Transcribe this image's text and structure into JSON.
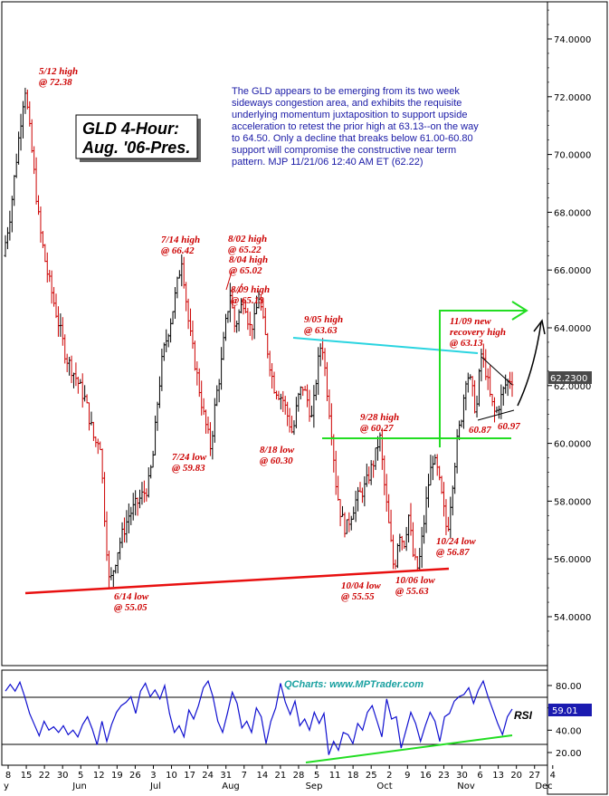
{
  "chart_data": [
    {
      "type": "candlestick",
      "title": "GLD 4-Hour:",
      "subtitle": "Aug. '06-Pres.",
      "ylim": [
        52.6,
        75.4
      ],
      "y_ticks": [
        "74.0000",
        "72.0000",
        "70.0000",
        "68.0000",
        "66.0000",
        "64.0000",
        "62.0000",
        "60.0000",
        "58.0000",
        "56.0000",
        "54.0000"
      ],
      "last_price": "62.2300",
      "price_path": [
        [
          0,
          66.5
        ],
        [
          1.5,
          68
        ],
        [
          2.5,
          69.5
        ],
        [
          3.5,
          71
        ],
        [
          4.5,
          72.38
        ],
        [
          6,
          70
        ],
        [
          7.5,
          67.5
        ],
        [
          9,
          66
        ],
        [
          11,
          64.5
        ],
        [
          13,
          63
        ],
        [
          15,
          62.3
        ],
        [
          17,
          61.5
        ],
        [
          19,
          60
        ],
        [
          20,
          60.2
        ],
        [
          21,
          57.5
        ],
        [
          22,
          55.05
        ],
        [
          24,
          56.5
        ],
        [
          26,
          57.5
        ],
        [
          28,
          58
        ],
        [
          30,
          58.5
        ],
        [
          31,
          59.5
        ],
        [
          32,
          61.5
        ],
        [
          33,
          63
        ],
        [
          35,
          64.5
        ],
        [
          37,
          66.42
        ],
        [
          38.5,
          64
        ],
        [
          40,
          62.5
        ],
        [
          41.5,
          61
        ],
        [
          43,
          59.83
        ],
        [
          44,
          61.5
        ],
        [
          45,
          62.5
        ],
        [
          46,
          64
        ],
        [
          47,
          65.22
        ],
        [
          48,
          64
        ],
        [
          49,
          64.6
        ],
        [
          50,
          65.02
        ],
        [
          51,
          64
        ],
        [
          52,
          64.2
        ],
        [
          53,
          65.13
        ],
        [
          54,
          64
        ],
        [
          55,
          63
        ],
        [
          56,
          62
        ],
        [
          58,
          61.5
        ],
        [
          60,
          60.3
        ],
        [
          61,
          61.5
        ],
        [
          62,
          62
        ],
        [
          63,
          61.5
        ],
        [
          64,
          60.8
        ],
        [
          65,
          62.5
        ],
        [
          66,
          63.63
        ],
        [
          67,
          62
        ],
        [
          68,
          60.5
        ],
        [
          69,
          58.5
        ],
        [
          70,
          57.5
        ],
        [
          71,
          57
        ],
        [
          72,
          57.5
        ],
        [
          73,
          58
        ],
        [
          75,
          58.5
        ],
        [
          77,
          59.5
        ],
        [
          78,
          60.27
        ],
        [
          79,
          58.5
        ],
        [
          80,
          57
        ],
        [
          81,
          55.55
        ],
        [
          82,
          57
        ],
        [
          83,
          56.5
        ],
        [
          84,
          57.5
        ],
        [
          85,
          56
        ],
        [
          86,
          55.63
        ],
        [
          87,
          57
        ],
        [
          88,
          58.5
        ],
        [
          89,
          59.5
        ],
        [
          90,
          59
        ],
        [
          91,
          58
        ],
        [
          92,
          56.87
        ],
        [
          93,
          58.5
        ],
        [
          94,
          60
        ],
        [
          95,
          61
        ],
        [
          96,
          62.5
        ],
        [
          97,
          62
        ],
        [
          98,
          61
        ],
        [
          99,
          63.13
        ],
        [
          100,
          62.5
        ],
        [
          101,
          61.5
        ],
        [
          102,
          60.97
        ],
        [
          103,
          61.5
        ],
        [
          104,
          62
        ],
        [
          105,
          62.23
        ]
      ],
      "annotations": [
        {
          "lines": [
            "5/12 high",
            "@ 72.38"
          ]
        },
        {
          "lines": [
            "7/14 high",
            "@ 66.42"
          ]
        },
        {
          "lines": [
            "8/02 high",
            "@ 65.22"
          ]
        },
        {
          "lines": [
            "8/04 high",
            "@ 65.02"
          ]
        },
        {
          "lines": [
            "8/09 high",
            "@ 65.13"
          ]
        },
        {
          "lines": [
            "9/05 high",
            "@ 63.63"
          ]
        },
        {
          "lines": [
            "11/09 new",
            "recovery high",
            "@ 63.13"
          ]
        },
        {
          "lines": [
            "9/28 high",
            "@ 60.27"
          ]
        },
        {
          "lines": [
            "60.87"
          ]
        },
        {
          "lines": [
            "60.97"
          ]
        },
        {
          "lines": [
            "7/24 low",
            "@ 59.83"
          ]
        },
        {
          "lines": [
            "8/18 low",
            "@ 60.30"
          ]
        },
        {
          "lines": [
            "10/24 low",
            "@ 56.87"
          ]
        },
        {
          "lines": [
            "6/14 low",
            "@ 55.05"
          ]
        },
        {
          "lines": [
            "10/04 low",
            "@ 55.55"
          ]
        },
        {
          "lines": [
            "10/06 low",
            "@ 55.63"
          ]
        }
      ],
      "commentary": [
        "The GLD appears to be emerging from its two week",
        "sideways congestion area, and exhibits the requisite",
        "underlying momentum juxtaposition to support upside",
        "acceleration to retest the prior high at 63.13--on the way",
        "to 64.50. Only a decline that breaks below 61.00-60.80",
        "support will compromise the constructive near term",
        "pattern. MJP 11/21/06 12:40 AM ET   (62.22)"
      ],
      "colors": {
        "support_line": "#e81010",
        "resistance_line": "#2ad4e0",
        "breakout_line": "#22dd22",
        "bar_up": "#000000",
        "bar_down": "#cc0000"
      }
    },
    {
      "type": "line",
      "name": "RSI",
      "watermark": "QCharts: www.MPTrader.com",
      "ylim": [
        10,
        90
      ],
      "y_ticks": [
        "80.00",
        "60.00",
        "40.00",
        "20.00"
      ],
      "last_value": "59.01",
      "rsi_path": [
        [
          0,
          75
        ],
        [
          1,
          81
        ],
        [
          2,
          75
        ],
        [
          3,
          83
        ],
        [
          4,
          70
        ],
        [
          5,
          55
        ],
        [
          6,
          45
        ],
        [
          7,
          35
        ],
        [
          8,
          48
        ],
        [
          9,
          40
        ],
        [
          10,
          43
        ],
        [
          11,
          38
        ],
        [
          12,
          44
        ],
        [
          13,
          36
        ],
        [
          14,
          40
        ],
        [
          15,
          34
        ],
        [
          16,
          45
        ],
        [
          17,
          52
        ],
        [
          18,
          41
        ],
        [
          19,
          27
        ],
        [
          20,
          48
        ],
        [
          21,
          30
        ],
        [
          22,
          45
        ],
        [
          23,
          56
        ],
        [
          24,
          62
        ],
        [
          25,
          65
        ],
        [
          26,
          70
        ],
        [
          27,
          55
        ],
        [
          28,
          75
        ],
        [
          29,
          82
        ],
        [
          30,
          70
        ],
        [
          31,
          76
        ],
        [
          32,
          68
        ],
        [
          33,
          80
        ],
        [
          34,
          55
        ],
        [
          35,
          38
        ],
        [
          36,
          44
        ],
        [
          37,
          34
        ],
        [
          38,
          58
        ],
        [
          39,
          50
        ],
        [
          40,
          62
        ],
        [
          41,
          78
        ],
        [
          42,
          84
        ],
        [
          43,
          70
        ],
        [
          44,
          48
        ],
        [
          45,
          38
        ],
        [
          46,
          55
        ],
        [
          47,
          74
        ],
        [
          48,
          64
        ],
        [
          49,
          42
        ],
        [
          50,
          48
        ],
        [
          51,
          38
        ],
        [
          52,
          60
        ],
        [
          53,
          52
        ],
        [
          54,
          28
        ],
        [
          55,
          48
        ],
        [
          56,
          60
        ],
        [
          57,
          82
        ],
        [
          58,
          65
        ],
        [
          59,
          54
        ],
        [
          60,
          66
        ],
        [
          61,
          44
        ],
        [
          62,
          50
        ],
        [
          63,
          40
        ],
        [
          64,
          56
        ],
        [
          65,
          46
        ],
        [
          66,
          55
        ],
        [
          67,
          18
        ],
        [
          68,
          30
        ],
        [
          69,
          22
        ],
        [
          70,
          38
        ],
        [
          71,
          36
        ],
        [
          72,
          28
        ],
        [
          73,
          46
        ],
        [
          74,
          40
        ],
        [
          75,
          56
        ],
        [
          76,
          62
        ],
        [
          77,
          48
        ],
        [
          78,
          34
        ],
        [
          79,
          68
        ],
        [
          80,
          50
        ],
        [
          81,
          52
        ],
        [
          82,
          24
        ],
        [
          83,
          40
        ],
        [
          84,
          56
        ],
        [
          85,
          46
        ],
        [
          86,
          30
        ],
        [
          87,
          44
        ],
        [
          88,
          56
        ],
        [
          89,
          48
        ],
        [
          90,
          30
        ],
        [
          91,
          52
        ],
        [
          92,
          55
        ],
        [
          93,
          66
        ],
        [
          94,
          70
        ],
        [
          95,
          72
        ],
        [
          96,
          78
        ],
        [
          97,
          64
        ],
        [
          98,
          76
        ],
        [
          99,
          84
        ],
        [
          100,
          70
        ],
        [
          101,
          58
        ],
        [
          102,
          46
        ],
        [
          103,
          36
        ],
        [
          104,
          52
        ],
        [
          105,
          59
        ]
      ],
      "colors": {
        "line": "#1010d0",
        "trend": "#22dd22"
      }
    }
  ],
  "x_axis": {
    "tick_labels": [
      "8",
      "15",
      "22",
      "30",
      "5",
      "12",
      "19",
      "26",
      "3",
      "10",
      "17",
      "24",
      "31",
      "7",
      "14",
      "21",
      "28",
      "5",
      "11",
      "18",
      "25",
      "2",
      "9",
      "16",
      "23",
      "30",
      "6",
      "13",
      "20",
      "27",
      "4"
    ],
    "month_labels": [
      "Jun",
      "Jul",
      "Aug",
      "Sep",
      "Oct",
      "Nov",
      "Dec"
    ],
    "edge_label": "y"
  }
}
